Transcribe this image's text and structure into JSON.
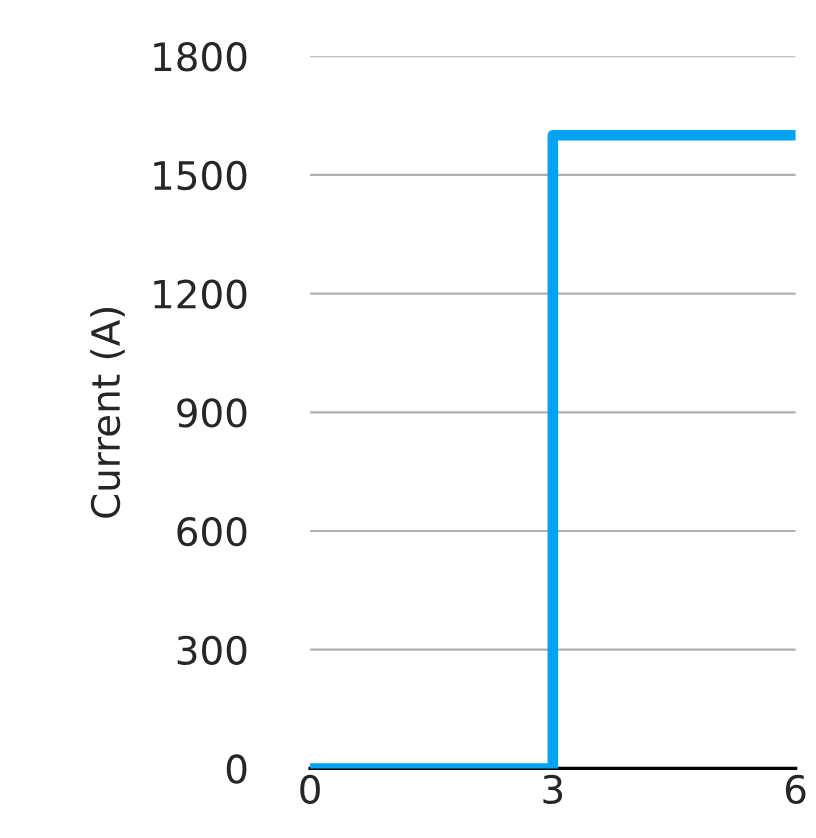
{
  "chart_data": {
    "type": "step",
    "ylabel": "Current (A)",
    "x": [
      0,
      3,
      6
    ],
    "series": [
      {
        "color": "#00a3f4",
        "values": [
          0,
          1600,
          1600
        ]
      }
    ],
    "xlim": [
      0,
      6
    ],
    "xticks": [
      0,
      3,
      6
    ],
    "ylim": [
      0,
      1800
    ],
    "yticks": [
      0,
      300,
      600,
      900,
      1200,
      1500,
      1800
    ],
    "grid": "y"
  }
}
